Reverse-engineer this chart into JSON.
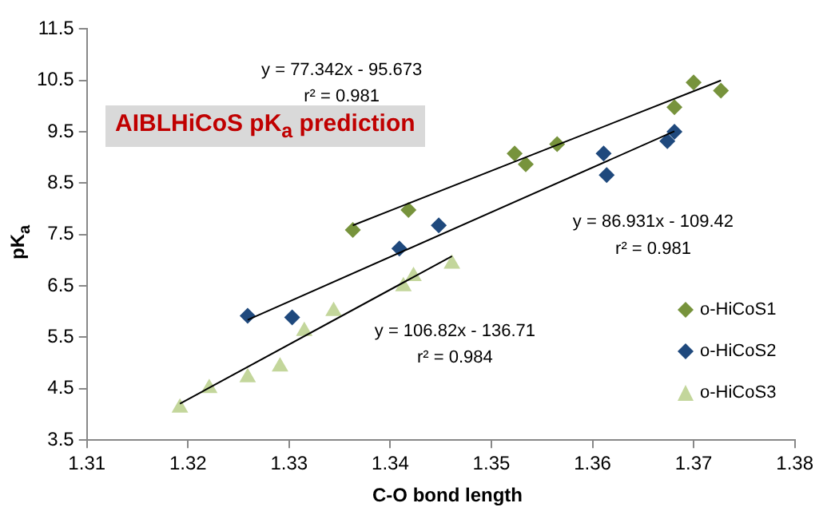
{
  "chart_data": {
    "type": "scatter",
    "title": "AIBLHiCoS pK$_{a}$ prediction",
    "xlabel": "C-O bond length",
    "ylabel": "pK$_{a}$",
    "xlim": [
      1.31,
      1.38
    ],
    "xticks": [
      1.31,
      1.32,
      1.33,
      1.34,
      1.35,
      1.36,
      1.37,
      1.38
    ],
    "ylim": [
      3.5,
      11.5
    ],
    "yticks": [
      3.5,
      4.5,
      5.5,
      6.5,
      7.5,
      8.5,
      9.5,
      10.5,
      11.5
    ],
    "grid": false,
    "legend": "right",
    "annotations": [
      "y = 77.342x - 95.673",
      "r² = 0.981",
      "y = 86.931x - 109.42",
      "r² = 0.981",
      "y = 106.82x - 136.71",
      "r² = 0.984"
    ],
    "series": [
      {
        "name": "o-HiCoS1",
        "type": "scatter",
        "marker": "diamond",
        "color": "#77933c",
        "x": [
          1.3363,
          1.3418,
          1.3523,
          1.3534,
          1.3565,
          1.3681,
          1.37,
          1.3727
        ],
        "values": [
          7.59,
          7.98,
          9.08,
          8.87,
          9.26,
          9.98,
          10.46,
          10.3
        ]
      },
      {
        "name": "o-HiCoS2",
        "type": "scatter",
        "marker": "diamond",
        "color": "#1f497d",
        "x": [
          1.3259,
          1.3303,
          1.3409,
          1.3448,
          1.3611,
          1.3614,
          1.3674,
          1.3681
        ],
        "values": [
          5.92,
          5.89,
          7.23,
          7.68,
          9.08,
          8.66,
          9.32,
          9.5
        ]
      },
      {
        "name": "o-HiCoS3",
        "type": "scatter",
        "marker": "triangle",
        "color": "#c3d69b",
        "x": [
          1.3192,
          1.3221,
          1.3259,
          1.3291,
          1.3315,
          1.3344,
          1.3413,
          1.3423,
          1.3461
        ],
        "values": [
          4.13,
          4.51,
          4.72,
          4.93,
          5.62,
          6.01,
          6.49,
          6.69,
          6.93
        ]
      },
      {
        "type": "line",
        "color": "#000000",
        "x": [
          1.3363,
          1.3727
        ],
        "values": [
          7.68,
          10.5
        ]
      },
      {
        "type": "line",
        "color": "#000000",
        "x": [
          1.3259,
          1.3681
        ],
        "values": [
          5.84,
          9.51
        ]
      },
      {
        "type": "line",
        "color": "#000000",
        "x": [
          1.3192,
          1.3461
        ],
        "values": [
          4.21,
          7.08
        ]
      }
    ]
  }
}
